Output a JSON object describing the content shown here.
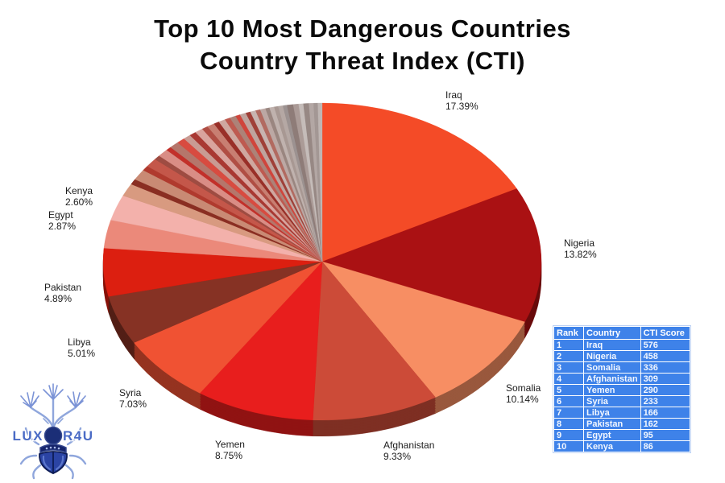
{
  "header": {
    "title_line1": "Top 10 Most Dangerous Countries",
    "title_line2": "Country Threat Index (CTI)"
  },
  "logo": {
    "text": "LUXOR4U"
  },
  "table": {
    "headers": [
      "Rank",
      "Country",
      "CTI Score"
    ],
    "rows": [
      [
        "1",
        "Iraq",
        "576"
      ],
      [
        "2",
        "Nigeria",
        "458"
      ],
      [
        "3",
        "Somalia",
        "336"
      ],
      [
        "4",
        "Afghanistan",
        "309"
      ],
      [
        "5",
        "Yemen",
        "290"
      ],
      [
        "6",
        "Syria",
        "233"
      ],
      [
        "7",
        "Libya",
        "166"
      ],
      [
        "8",
        "Pakistan",
        "162"
      ],
      [
        "9",
        "Egypt",
        "95"
      ],
      [
        "10",
        "Kenya",
        "86"
      ]
    ]
  },
  "chart_data": {
    "type": "pie",
    "title": "Top 10 Most Dangerous Countries — Country Threat Index (CTI)",
    "style": "3d-pie, labels outside, starts at 12 o'clock clockwise",
    "unit": "percent",
    "slices": [
      {
        "label": "Iraq",
        "value": 17.39,
        "color": "#F44B27"
      },
      {
        "label": "Nigeria",
        "value": 13.82,
        "color": "#AA1113"
      },
      {
        "label": "Somalia",
        "value": 10.14,
        "color": "#F78E63"
      },
      {
        "label": "Afghanistan",
        "value": 9.33,
        "color": "#CC4B38"
      },
      {
        "label": "Yemen",
        "value": 8.75,
        "color": "#E81E1D"
      },
      {
        "label": "Syria",
        "value": 7.03,
        "color": "#F05233"
      },
      {
        "label": "Libya",
        "value": 5.01,
        "color": "#863224"
      },
      {
        "label": "Pakistan",
        "value": 4.89,
        "color": "#DC1F10"
      },
      {
        "label": "Egypt",
        "value": 2.87,
        "color": "#EB897A"
      },
      {
        "label": "Kenya",
        "value": 2.6,
        "color": "#F3B1AB"
      }
    ],
    "others_note": "remaining 18.17% is many thin unlabeled slices",
    "others": [
      {
        "value": 1.3,
        "color": "#D89A80"
      },
      {
        "value": 0.55,
        "color": "#8A2E22"
      },
      {
        "value": 1.1,
        "color": "#C98A74"
      },
      {
        "value": 0.5,
        "color": "#B03A2E"
      },
      {
        "value": 0.9,
        "color": "#C4574A"
      },
      {
        "value": 0.45,
        "color": "#9E4C42"
      },
      {
        "value": 0.8,
        "color": "#D98D85"
      },
      {
        "value": 0.4,
        "color": "#C2302A"
      },
      {
        "value": 0.7,
        "color": "#B5766B"
      },
      {
        "value": 0.6,
        "color": "#D84B40"
      },
      {
        "value": 0.55,
        "color": "#C99B93"
      },
      {
        "value": 0.5,
        "color": "#A93832"
      },
      {
        "value": 0.6,
        "color": "#D9A49E"
      },
      {
        "value": 0.45,
        "color": "#B04E44"
      },
      {
        "value": 0.55,
        "color": "#C87F72"
      },
      {
        "value": 0.4,
        "color": "#992F28"
      },
      {
        "value": 0.5,
        "color": "#CFA8A0"
      },
      {
        "value": 0.4,
        "color": "#BE5A50"
      },
      {
        "value": 0.45,
        "color": "#AD8278"
      },
      {
        "value": 0.35,
        "color": "#D0453C"
      },
      {
        "value": 0.45,
        "color": "#BFA49E"
      },
      {
        "value": 0.35,
        "color": "#A04038"
      },
      {
        "value": 0.4,
        "color": "#C8B4B0"
      },
      {
        "value": 0.35,
        "color": "#B26A60"
      },
      {
        "value": 0.4,
        "color": "#BCA8A4"
      },
      {
        "value": 0.3,
        "color": "#9A8680"
      },
      {
        "value": 0.35,
        "color": "#C0B2AE"
      },
      {
        "value": 0.3,
        "color": "#A89893"
      },
      {
        "value": 0.35,
        "color": "#B5A8A4"
      },
      {
        "value": 0.3,
        "color": "#9C9291"
      },
      {
        "value": 0.45,
        "color": "#8E7C78"
      },
      {
        "value": 0.4,
        "color": "#AB9B97"
      },
      {
        "value": 0.35,
        "color": "#C5BCB9"
      },
      {
        "value": 0.4,
        "color": "#978884"
      },
      {
        "value": 0.35,
        "color": "#B3A7A4"
      },
      {
        "value": 0.3,
        "color": "#A39794"
      },
      {
        "value": 0.32,
        "color": "#BFB6B3"
      }
    ]
  }
}
